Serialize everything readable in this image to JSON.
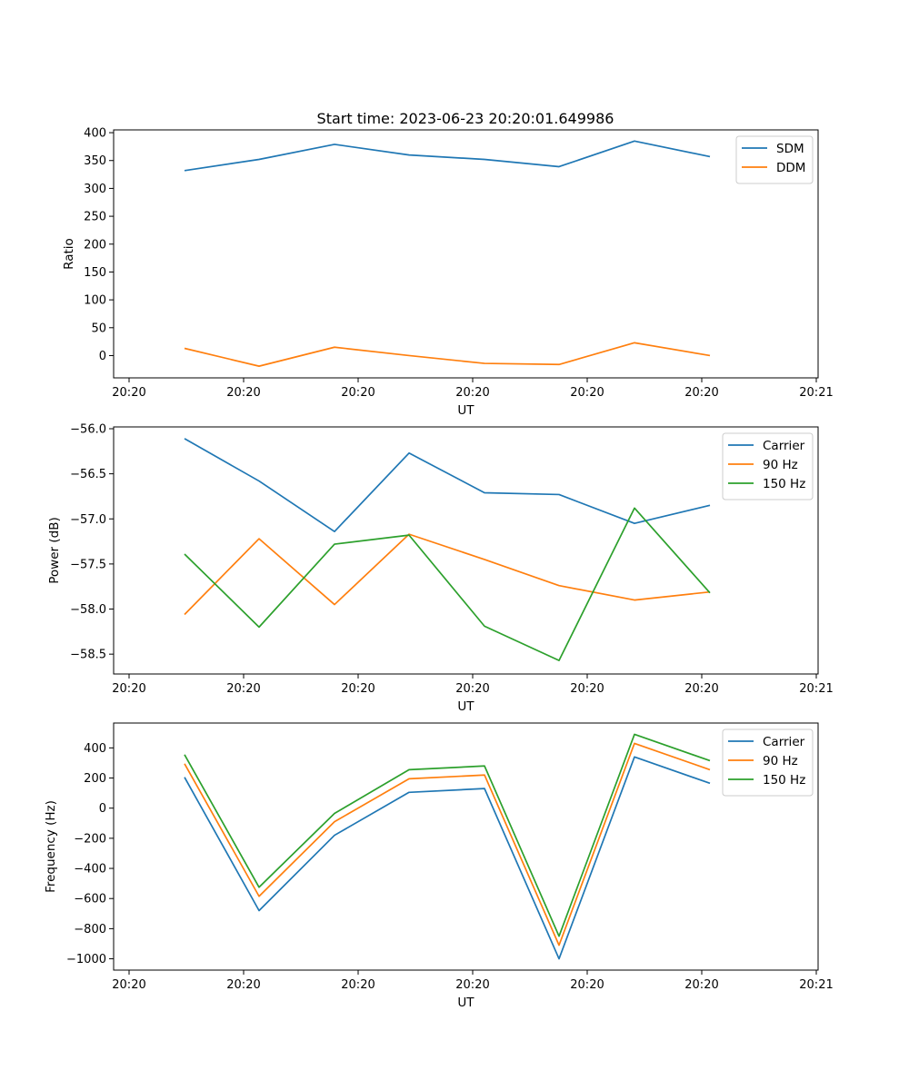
{
  "title": "Start time: 2023-06-23 20:20:01.649986",
  "chart_data": [
    {
      "type": "line",
      "title": "Start time: 2023-06-23 20:20:01.649986",
      "xlabel": "UT",
      "ylabel": "Ratio",
      "x_tick_labels": [
        "20:20",
        "20:20",
        "20:20",
        "20:20",
        "20:20",
        "20:20",
        "20:21"
      ],
      "yticks": [
        0,
        50,
        100,
        150,
        200,
        250,
        300,
        350,
        400
      ],
      "ylim": [
        -40,
        405
      ],
      "legend_position": "upper-right",
      "series": [
        {
          "name": "SDM",
          "color": "#1f77b4",
          "values": [
            332,
            352,
            379,
            360,
            352,
            339,
            385,
            357
          ]
        },
        {
          "name": "DDM",
          "color": "#ff7f0e",
          "values": [
            13,
            -19,
            15,
            0,
            -14,
            -16,
            23,
            0
          ]
        }
      ]
    },
    {
      "type": "line",
      "xlabel": "UT",
      "ylabel": "Power (dB)",
      "x_tick_labels": [
        "20:20",
        "20:20",
        "20:20",
        "20:20",
        "20:20",
        "20:20",
        "20:21"
      ],
      "yticks": [
        -58.5,
        -58.0,
        -57.5,
        -57.0,
        -56.5,
        -56.0
      ],
      "ytick_labels": [
        "−58.5",
        "−58.0",
        "−57.5",
        "−57.0",
        "−56.5",
        "−56.0"
      ],
      "ylim": [
        -58.72,
        -55.98
      ],
      "legend_position": "upper-right",
      "series": [
        {
          "name": "Carrier",
          "color": "#1f77b4",
          "values": [
            -56.11,
            -56.58,
            -57.14,
            -56.27,
            -56.71,
            -56.73,
            -57.05,
            -56.85
          ]
        },
        {
          "name": "90 Hz",
          "color": "#ff7f0e",
          "values": [
            -58.06,
            -57.22,
            -57.95,
            -57.17,
            -57.45,
            -57.74,
            -57.9,
            -57.81
          ]
        },
        {
          "name": "150 Hz",
          "color": "#2ca02c",
          "values": [
            -57.39,
            -58.2,
            -57.28,
            -57.18,
            -58.19,
            -58.57,
            -56.88,
            -57.82
          ]
        }
      ]
    },
    {
      "type": "line",
      "xlabel": "UT",
      "ylabel": "Frequency (Hz)",
      "x_tick_labels": [
        "20:20",
        "20:20",
        "20:20",
        "20:20",
        "20:20",
        "20:20",
        "20:21"
      ],
      "yticks": [
        -1000,
        -800,
        -600,
        -400,
        -200,
        0,
        200,
        400
      ],
      "ytick_labels": [
        "−1000",
        "−800",
        "−600",
        "−400",
        "−200",
        "0",
        "200",
        "400"
      ],
      "ylim": [
        -1075,
        565
      ],
      "legend_position": "upper-right",
      "series": [
        {
          "name": "Carrier",
          "color": "#1f77b4",
          "values": [
            205,
            -680,
            -180,
            105,
            130,
            -1000,
            340,
            165
          ]
        },
        {
          "name": "90 Hz",
          "color": "#ff7f0e",
          "values": [
            295,
            -585,
            -90,
            195,
            220,
            -910,
            430,
            255
          ]
        },
        {
          "name": "150 Hz",
          "color": "#2ca02c",
          "values": [
            355,
            -525,
            -35,
            255,
            280,
            -850,
            490,
            315
          ]
        }
      ]
    }
  ]
}
